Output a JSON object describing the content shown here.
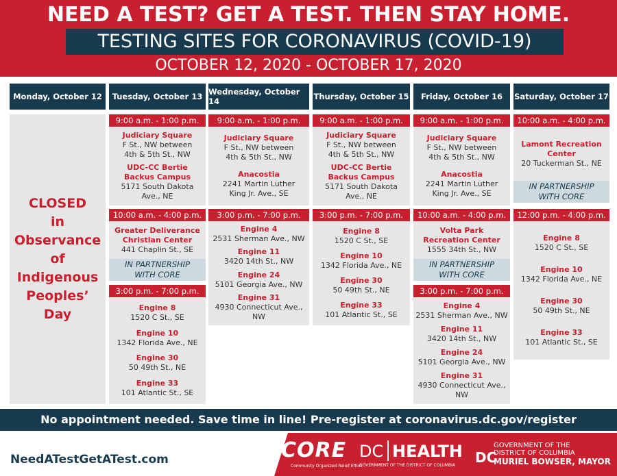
{
  "header": {
    "title": "NEED A TEST? GET A TEST. THEN STAY HOME.",
    "subtitle": "TESTING SITES FOR CORONAVIRUS (COVID-19)",
    "dates": "OCTOBER 12, 2020 - OCTOBER 17, 2020"
  },
  "days": [
    {
      "label": "Monday, October 12",
      "closed": [
        "CLOSED",
        "in",
        "Observance",
        "of",
        "Indigenous",
        "Peoples’",
        "Day"
      ]
    },
    {
      "label": "Tuesday, October 13",
      "blocks": [
        {
          "time": "9:00 a.m. - 1:00 p.m.",
          "sites": [
            {
              "name": [
                "Judiciary Square"
              ],
              "address": [
                "F St., NW between",
                "4th & 5th St., NW"
              ]
            },
            {
              "name": [
                "UDC-CC Bertie",
                "Backus Campus"
              ],
              "address": [
                "5171 South Dakota",
                "Ave., NE"
              ]
            }
          ]
        },
        {
          "time": "10:00 a.m. - 4:00 p.m.",
          "sites": [
            {
              "name": [
                "Greater Deliverance",
                "Christian Center"
              ],
              "address": [
                "441 Chaplin St., SE"
              ]
            }
          ],
          "partner": [
            "IN PARTNERSHIP",
            "WITH CORE"
          ]
        },
        {
          "time": "3:00 p.m. - 7:00 p.m.",
          "sites": [
            {
              "name": [
                "Engine 8"
              ],
              "address": [
                "1520 C St., SE"
              ]
            },
            {
              "name": [
                "Engine 10"
              ],
              "address": [
                "1342 Florida Ave., NE"
              ]
            },
            {
              "name": [
                "Engine 30"
              ],
              "address": [
                "50 49th St., NE"
              ]
            },
            {
              "name": [
                "Engine 33"
              ],
              "address": [
                "101 Atlantic St., SE"
              ]
            }
          ]
        }
      ]
    },
    {
      "label": "Wednesday, October 14",
      "blocks": [
        {
          "time": "9:00 a.m. - 1:00 p.m.",
          "sites": [
            {
              "name": [
                "Judiciary Square"
              ],
              "address": [
                "F St., NW between",
                "4th & 5th St., NW"
              ]
            },
            {
              "name": [
                "Anacostia"
              ],
              "address": [
                "2241 Martin Luther",
                "King Jr. Ave., SE"
              ]
            }
          ]
        },
        {
          "time": "3:00 p.m. - 7:00 p.m.",
          "sites": [
            {
              "name": [
                "Engine 4"
              ],
              "address": [
                "2531 Sherman Ave., NW"
              ]
            },
            {
              "name": [
                "Engine 11"
              ],
              "address": [
                "3420 14th St., NW"
              ]
            },
            {
              "name": [
                "Engine 24"
              ],
              "address": [
                "5101 Georgia Ave., NW"
              ]
            },
            {
              "name": [
                "Engine 31"
              ],
              "address": [
                "4930 Connecticut Ave., NW"
              ]
            }
          ]
        }
      ]
    },
    {
      "label": "Thursday, October 15",
      "blocks": [
        {
          "time": "9:00 a.m. - 1:00 p.m.",
          "sites": [
            {
              "name": [
                "Judiciary Square"
              ],
              "address": [
                "F St., NW between",
                "4th & 5th St., NW"
              ]
            },
            {
              "name": [
                "UDC-CC Bertie",
                "Backus Campus"
              ],
              "address": [
                "5171 South Dakota",
                "Ave., NE"
              ]
            }
          ]
        },
        {
          "time": "3:00 p.m. - 7:00 p.m.",
          "sites": [
            {
              "name": [
                "Engine 8"
              ],
              "address": [
                "1520 C St., SE"
              ]
            },
            {
              "name": [
                "Engine 10"
              ],
              "address": [
                "1342 Florida Ave., NE"
              ]
            },
            {
              "name": [
                "Engine 30"
              ],
              "address": [
                "50 49th St., NE"
              ]
            },
            {
              "name": [
                "Engine 33"
              ],
              "address": [
                "101 Atlantic St., SE"
              ]
            }
          ]
        }
      ]
    },
    {
      "label": "Friday, October 16",
      "blocks": [
        {
          "time": "9:00 a.m. - 1:00 p.m.",
          "sites": [
            {
              "name": [
                "Judiciary Square"
              ],
              "address": [
                "F St., NW between",
                "4th & 5th St., NW"
              ]
            },
            {
              "name": [
                "Anacostia"
              ],
              "address": [
                "2241 Martin Luther",
                "King Jr. Ave., SE"
              ]
            }
          ]
        },
        {
          "time": "10:00 a.m. - 4:00 p.m.",
          "sites": [
            {
              "name": [
                "Volta Park",
                "Recreation Center"
              ],
              "address": [
                "1555 34th St., NW"
              ]
            }
          ],
          "partner": [
            "IN PARTNERSHIP",
            "WITH CORE"
          ]
        },
        {
          "time": "3:00 p.m. - 7:00 p.m.",
          "sites": [
            {
              "name": [
                "Engine 4"
              ],
              "address": [
                "2531 Sherman Ave., NW"
              ]
            },
            {
              "name": [
                "Engine 11"
              ],
              "address": [
                "3420 14th St., NW"
              ]
            },
            {
              "name": [
                "Engine 24"
              ],
              "address": [
                "5101 Georgia Ave., NW"
              ]
            },
            {
              "name": [
                "Engine 31"
              ],
              "address": [
                "4930 Connecticut Ave., NW"
              ]
            }
          ]
        }
      ]
    },
    {
      "label": "Saturday, October 17",
      "blocks": [
        {
          "time": "10:00 a.m. - 4:00 p.m.",
          "sites": [
            {
              "name": [
                "Lamont Recreation",
                "Center"
              ],
              "address": [
                "20 Tuckerman St., NE"
              ]
            }
          ],
          "partner": [
            "IN PARTNERSHIP",
            "WITH CORE"
          ]
        },
        {
          "time": "12:00 p.m. - 4:00 p.m.",
          "sites": [
            {
              "name": [
                "Engine 8"
              ],
              "address": [
                "1520 C St., SE"
              ]
            },
            {
              "name": [
                "Engine 10"
              ],
              "address": [
                "1342 Florida Ave., NE"
              ]
            },
            {
              "name": [
                "Engine 30"
              ],
              "address": [
                "50 49th St., NE"
              ]
            },
            {
              "name": [
                "Engine 33"
              ],
              "address": [
                "101 Atlantic St., SE"
              ]
            }
          ]
        }
      ]
    }
  ],
  "footer": {
    "notice": "No appointment needed. Save time in line! Pre-register at coronavirus.dc.gov/register",
    "url": "NeedATestGetATest.com",
    "core": "CORE",
    "core_tagline": "Community Organized Relief Effort",
    "dc": "DC",
    "health": "HEALTH",
    "health_tagline": "GOVERNMENT OF THE DISTRICT OF COLUMBIA",
    "gov": [
      "GOVERNMENT OF THE",
      "DISTRICT OF COLUMBIA"
    ],
    "gov_dc": "DC",
    "mayor": "MURIEL BOWSER, MAYOR"
  }
}
